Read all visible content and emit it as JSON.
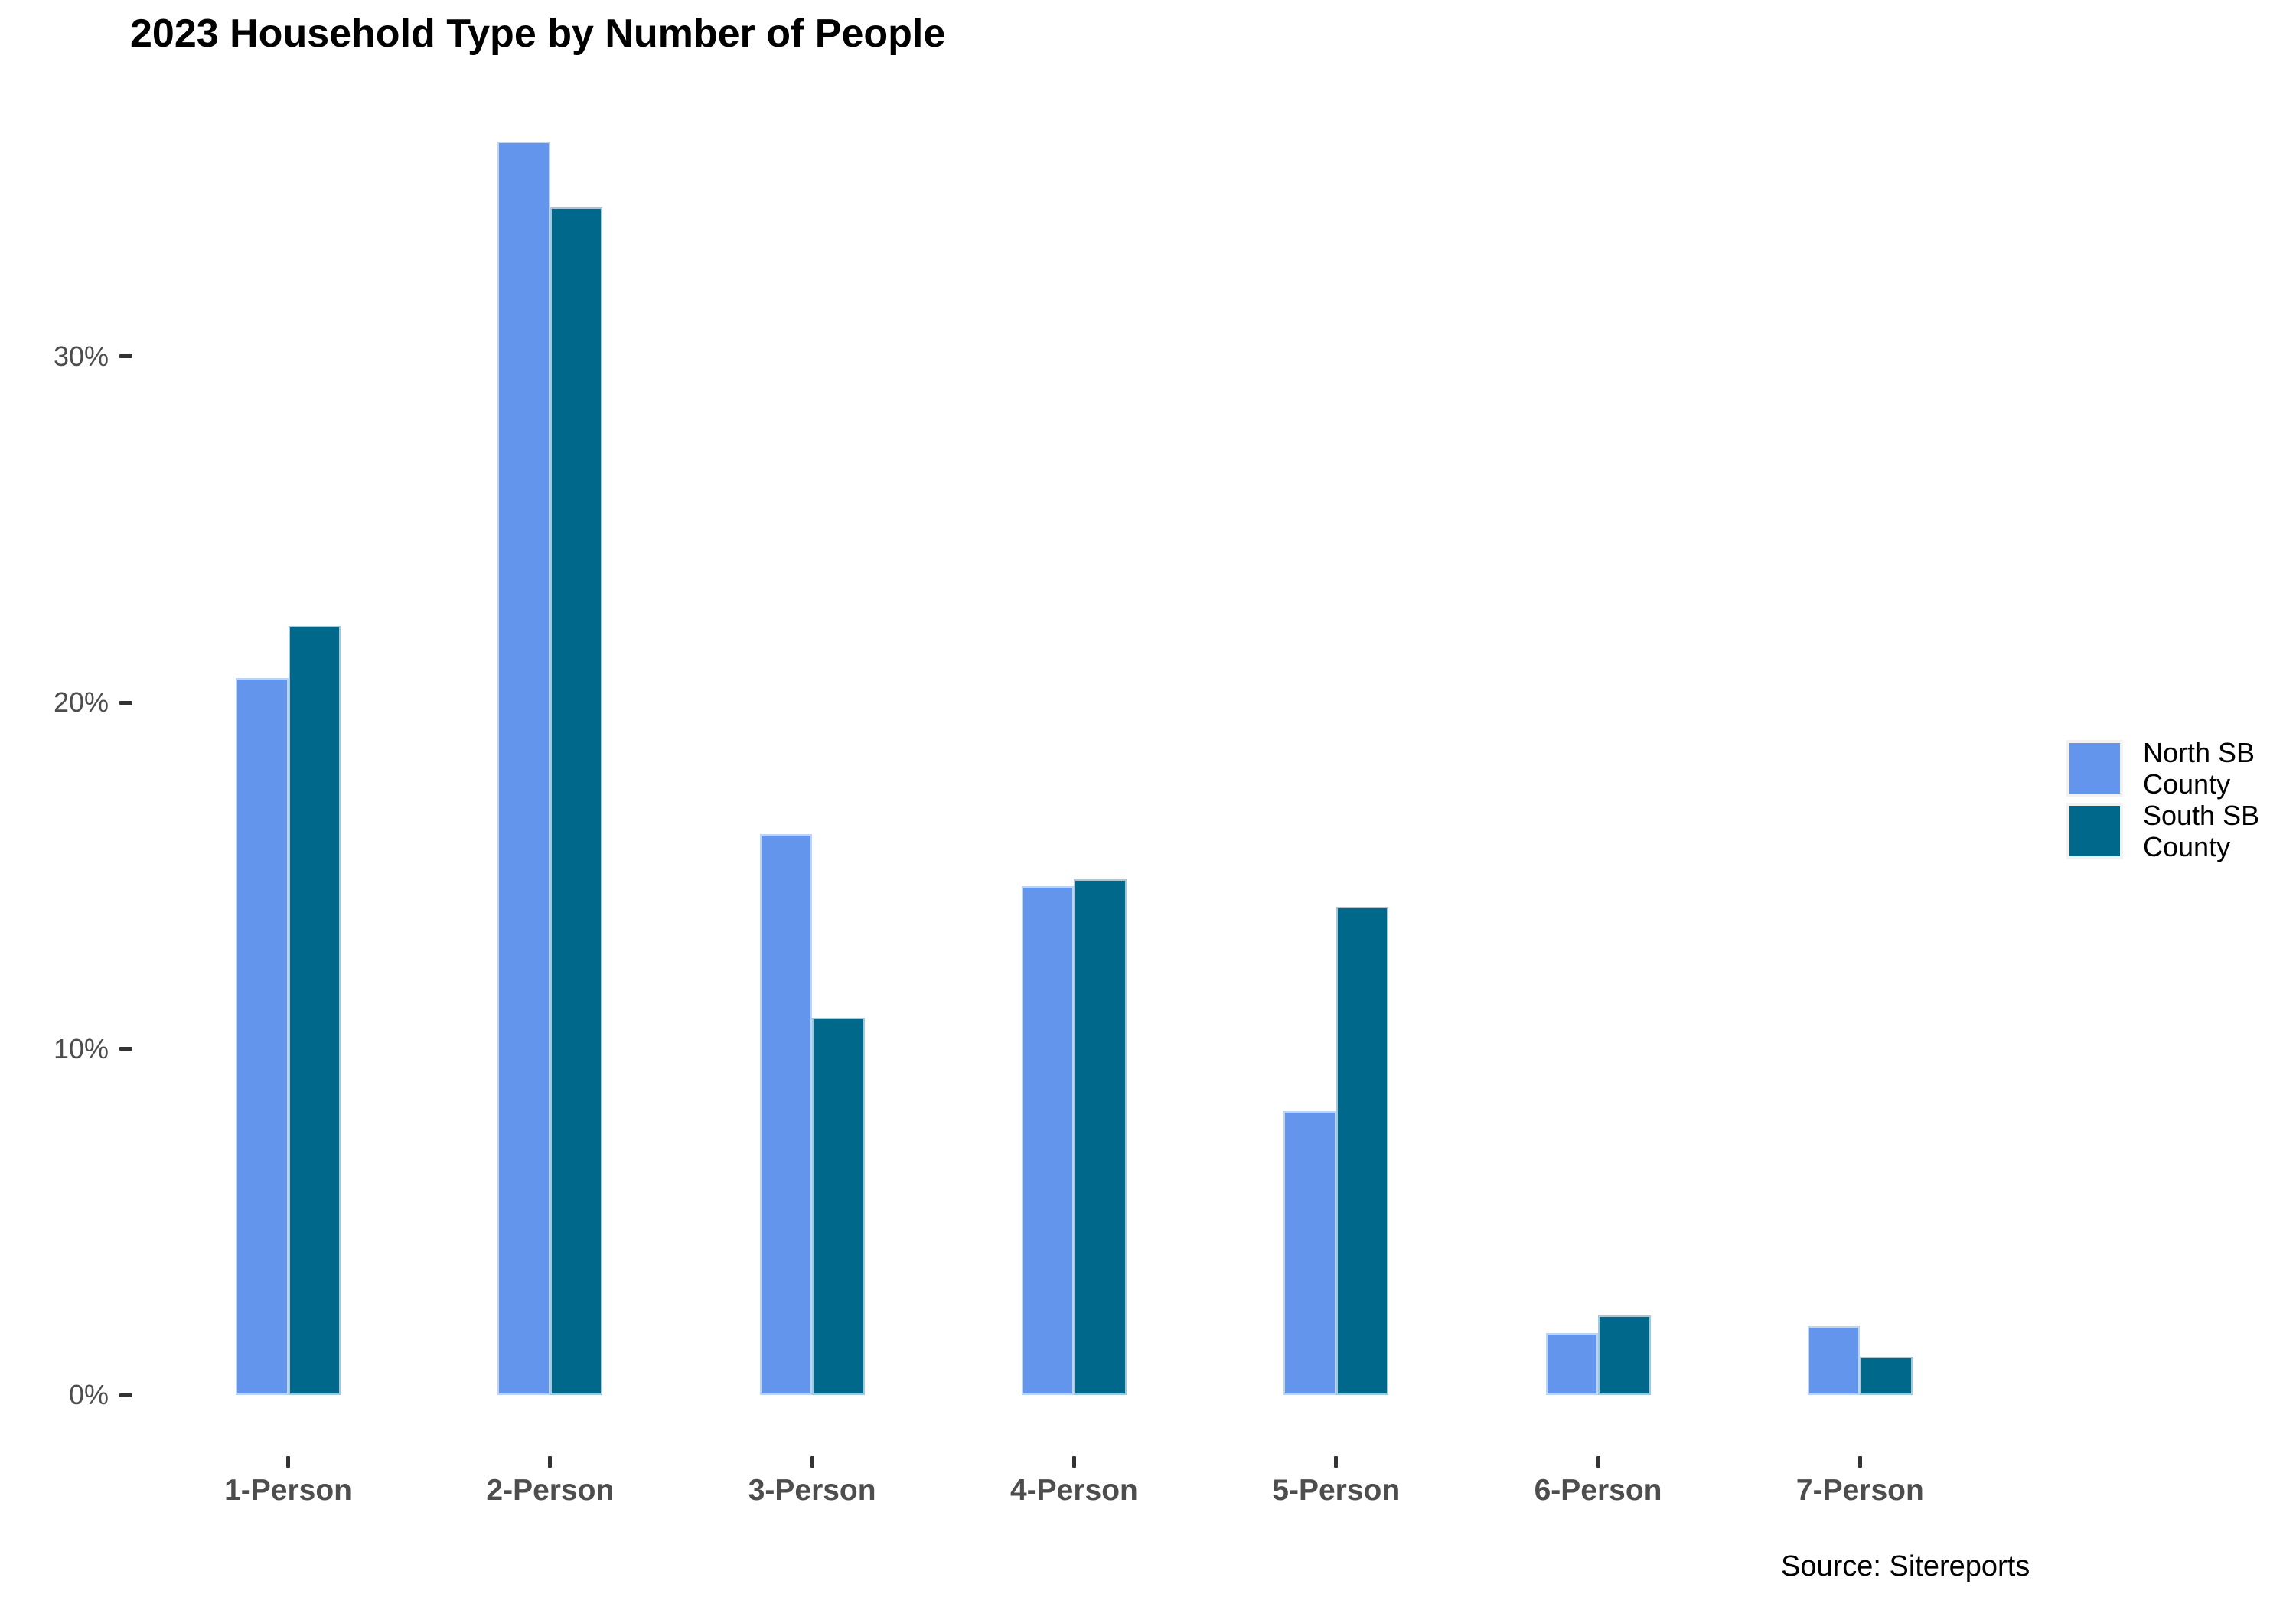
{
  "title": "2023 Household Type by Number of People",
  "source_note": "Source: Sitereports",
  "legend": {
    "items": [
      {
        "label": "North SB County",
        "color": "#6495ED"
      },
      {
        "label": "South SB County",
        "color": "#00688B"
      }
    ]
  },
  "chart_data": {
    "type": "bar",
    "title": "2023 Household Type by Number of People",
    "categories": [
      "1-Person",
      "2-Person",
      "3-Person",
      "4-Person",
      "5-Person",
      "6-Person",
      "7-Person"
    ],
    "series": [
      {
        "name": "North SB County",
        "color": "#6495ED",
        "values": [
          20.7,
          36.2,
          16.2,
          14.7,
          8.2,
          1.8,
          2.0
        ]
      },
      {
        "name": "South SB County",
        "color": "#00688B",
        "values": [
          22.2,
          34.3,
          10.9,
          14.9,
          14.1,
          2.3,
          1.1
        ]
      }
    ],
    "xlabel": "",
    "ylabel": "",
    "y_tick_values": [
      0,
      10,
      20,
      30
    ],
    "y_tick_labels": [
      "0%",
      "10%",
      "20%",
      "30%"
    ],
    "ylim": [
      0,
      38
    ],
    "grid": false,
    "legend_position": "right",
    "annotations": [
      "Source: Sitereports"
    ]
  }
}
